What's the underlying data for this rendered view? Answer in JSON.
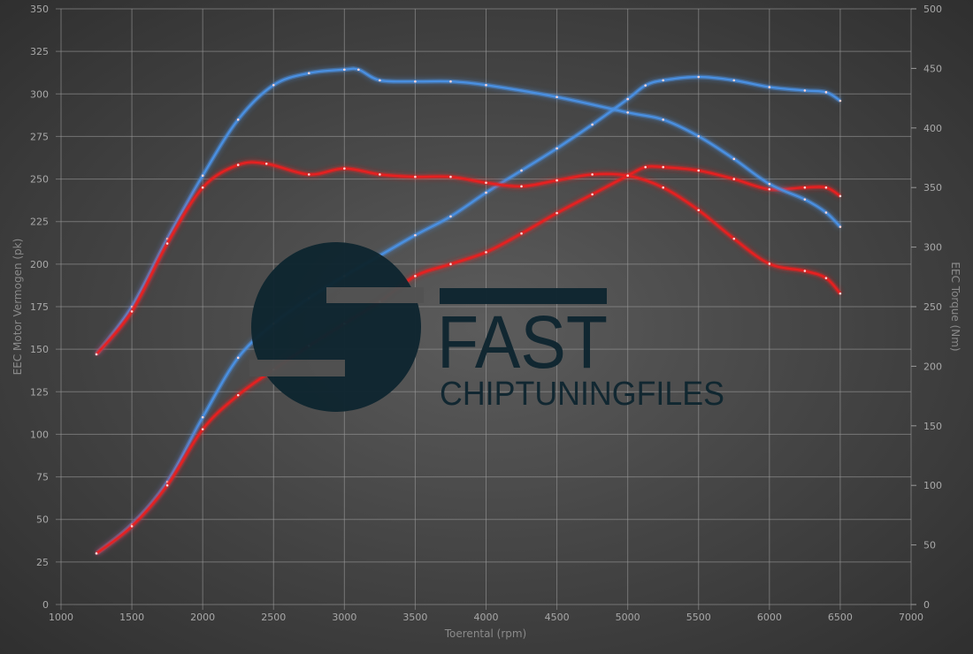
{
  "chart_data": {
    "type": "line",
    "title": "",
    "xlabel": "Toerental (rpm)",
    "ylabel_left": "EEC Motor Vermogen (pk)",
    "ylabel_right": "EEC Torque (Nm)",
    "xlim": [
      1000,
      7000
    ],
    "ylim_left": [
      0,
      350
    ],
    "ylim_right": [
      0,
      500
    ],
    "x_ticks": [
      1000,
      1500,
      2000,
      2500,
      3000,
      3500,
      4000,
      4500,
      5000,
      5500,
      6000,
      6500,
      7000
    ],
    "y_ticks_left": [
      0,
      25,
      50,
      75,
      100,
      125,
      150,
      175,
      200,
      225,
      250,
      275,
      300,
      325,
      350
    ],
    "y_ticks_right": [
      0,
      50,
      100,
      150,
      200,
      250,
      300,
      350,
      400,
      450,
      500
    ],
    "grid": true,
    "colors": {
      "tuned": "#4a90e2",
      "stock": "#e82020"
    },
    "series": [
      {
        "axis": "left",
        "color": "tuned",
        "x": [
          1250,
          1500,
          1750,
          2000,
          2250,
          2500,
          2750,
          3000,
          3250,
          3500,
          3750,
          4000,
          4250,
          4500,
          4750,
          5000,
          5125,
          5250,
          5500,
          5750,
          6000,
          6250,
          6400,
          6500
        ],
        "y": [
          30,
          47,
          72,
          110,
          145,
          165,
          180,
          193,
          205,
          217,
          228,
          242,
          255,
          268,
          282,
          297,
          305,
          308,
          310,
          308,
          304,
          302,
          301,
          296
        ]
      },
      {
        "axis": "left",
        "color": "stock",
        "x": [
          1250,
          1500,
          1750,
          2000,
          2250,
          2500,
          2750,
          3000,
          3250,
          3500,
          3750,
          4000,
          4250,
          4500,
          4750,
          5000,
          5125,
          5250,
          5500,
          5750,
          6000,
          6250,
          6400,
          6500
        ],
        "y": [
          30,
          46,
          70,
          103,
          123,
          138,
          152,
          165,
          178,
          193,
          200,
          207,
          218,
          230,
          241,
          252,
          257,
          257,
          255,
          250,
          244,
          245,
          245,
          240
        ]
      },
      {
        "axis": "right",
        "color": "tuned",
        "x": [
          1250,
          1500,
          1750,
          2000,
          2250,
          2500,
          2750,
          3000,
          3100,
          3250,
          3500,
          3750,
          4000,
          4500,
          5000,
          5250,
          5500,
          5750,
          6000,
          6250,
          6400,
          6500
        ],
        "y": [
          210,
          250,
          307,
          360,
          407,
          436,
          446,
          449,
          449,
          440,
          439,
          439,
          436,
          426,
          413,
          407,
          393,
          374,
          353,
          340,
          329,
          317
        ]
      },
      {
        "axis": "right",
        "color": "stock",
        "x": [
          1250,
          1500,
          1750,
          2000,
          2250,
          2450,
          2750,
          3000,
          3250,
          3500,
          3750,
          4000,
          4250,
          4500,
          4750,
          5000,
          5250,
          5500,
          5750,
          6000,
          6250,
          6400,
          6500
        ],
        "y": [
          210,
          246,
          303,
          350,
          369,
          370,
          361,
          366,
          361,
          359,
          359,
          354,
          351,
          356,
          361,
          360,
          350,
          331,
          307,
          286,
          280,
          274,
          261
        ]
      }
    ]
  },
  "logo": {
    "word1": "FAST",
    "word2": "CHIPTUNINGFILES",
    "color": "#0f2630"
  }
}
